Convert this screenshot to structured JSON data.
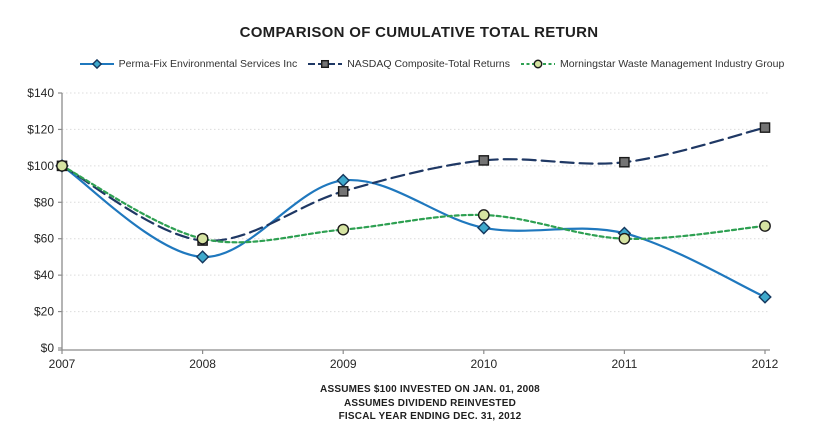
{
  "chart_data": {
    "type": "line",
    "title": "COMPARISON OF CUMULATIVE TOTAL RETURN",
    "x_categories": [
      "2007",
      "2008",
      "2009",
      "2010",
      "2011",
      "2012"
    ],
    "y_ticks": [
      0,
      20,
      40,
      60,
      80,
      100,
      120,
      140
    ],
    "y_tick_prefix": "$",
    "ylim": [
      0,
      140
    ],
    "grid": "horizontal-dotted",
    "legend_position": "top",
    "series": [
      {
        "name": "Perma-Fix Environmental Services Inc",
        "values": [
          100,
          50,
          92,
          66,
          63,
          28
        ],
        "color": "#1F78BE",
        "dash": "solid",
        "marker": "diamond",
        "marker_fill": "#3FA9CC",
        "marker_edge": "#14375E",
        "smooth": true
      },
      {
        "name": "NASDAQ Composite-Total Returns",
        "values": [
          100,
          59,
          86,
          103,
          102,
          121
        ],
        "color": "#1F3864",
        "dash": "long-dash",
        "marker": "square",
        "marker_fill": "#747474",
        "marker_edge": "#1A1A1A",
        "smooth": true
      },
      {
        "name": "Morningstar Waste Management Industry Group",
        "values": [
          100,
          60,
          65,
          73,
          60,
          67
        ],
        "color": "#2EA052",
        "dash": "short-dash",
        "marker": "circle",
        "marker_fill": "#D6E3A2",
        "marker_edge": "#1A1A1A",
        "smooth": true
      }
    ],
    "footnotes": [
      "ASSUMES $100 INVESTED ON JAN. 01, 2008",
      "ASSUMES DIVIDEND REINVESTED",
      "FISCAL YEAR ENDING DEC. 31, 2012"
    ],
    "colors": {
      "axis": "#8C8C8C",
      "grid": "#DCDCDC",
      "text": "#262626",
      "title": "#1F1F1F"
    }
  }
}
